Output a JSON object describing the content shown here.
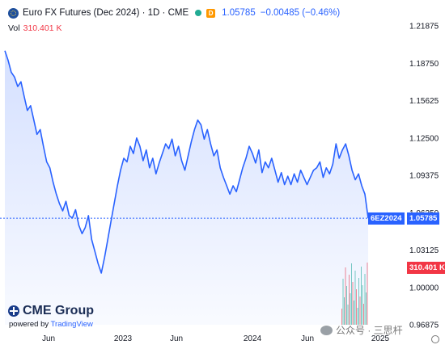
{
  "header": {
    "title": "Euro FX Futures (Dec 2024) · 1D · CME",
    "badge": "D",
    "price": "1.05785",
    "change": "−0.00485 (−0.46%)"
  },
  "volume": {
    "label": "Vol",
    "value": "310.401 K"
  },
  "price_tag": {
    "symbol": "6EZ2024",
    "value": "1.05785",
    "color": "#2962ff"
  },
  "volume_tag": {
    "value": "310.401 K",
    "color": "#f23645"
  },
  "branding": {
    "logo": "CME Group",
    "powered_prefix": "powered by",
    "powered_brand": "TradingView"
  },
  "watermark": "公众号 · 三思杆",
  "chart_data": {
    "type": "area",
    "series": [
      {
        "values": [
          1.198,
          1.19,
          1.18,
          1.176,
          1.168,
          1.172,
          1.16,
          1.148,
          1.152,
          1.14,
          1.128,
          1.132,
          1.118,
          1.105,
          1.1,
          1.088,
          1.078,
          1.07,
          1.064,
          1.072,
          1.06,
          1.058,
          1.065,
          1.052,
          1.045,
          1.05,
          1.06,
          1.04,
          1.03,
          1.02,
          1.012,
          1.025,
          1.04,
          1.055,
          1.07,
          1.085,
          1.098,
          1.108,
          1.105,
          1.118,
          1.112,
          1.125,
          1.118,
          1.106,
          1.115,
          1.1,
          1.108,
          1.095,
          1.104,
          1.112,
          1.12,
          1.116,
          1.124,
          1.11,
          1.118,
          1.106,
          1.098,
          1.11,
          1.122,
          1.132,
          1.14,
          1.136,
          1.124,
          1.132,
          1.12,
          1.11,
          1.115,
          1.1,
          1.092,
          1.085,
          1.078,
          1.085,
          1.08,
          1.09,
          1.1,
          1.108,
          1.118,
          1.112,
          1.104,
          1.115,
          1.096,
          1.105,
          1.1,
          1.108,
          1.098,
          1.088,
          1.096,
          1.086,
          1.093,
          1.086,
          1.095,
          1.088,
          1.098,
          1.092,
          1.086,
          1.092,
          1.098,
          1.1,
          1.105,
          1.092,
          1.1,
          1.095,
          1.103,
          1.12,
          1.108,
          1.115,
          1.12,
          1.11,
          1.098,
          1.09,
          1.095,
          1.085,
          1.078,
          1.058
        ]
      }
    ],
    "x_tick_labels": [
      "Jun",
      "2023",
      "Jun",
      "2024",
      "Jun",
      "2025"
    ],
    "y_tick_labels": [
      "1.21875",
      "1.18750",
      "1.15625",
      "1.12500",
      "1.09375",
      "1.06250",
      "1.03125",
      "1.00000",
      "0.96875"
    ],
    "y_range": [
      0.96875,
      1.21875
    ],
    "last_price": 1.05785,
    "volume_bars": "visible only near the right end (late 2024), red and green",
    "grid": false
  }
}
